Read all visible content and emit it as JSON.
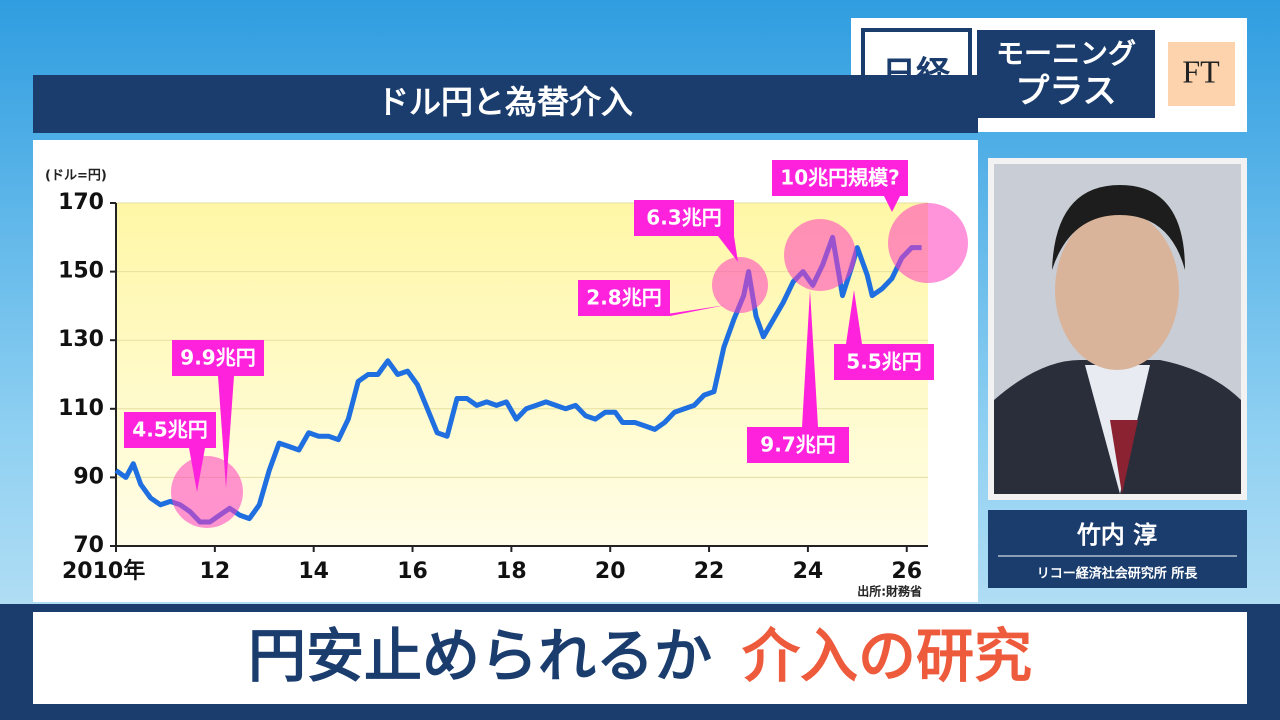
{
  "logo": {
    "nikkei": "日経",
    "line1": "モーニング",
    "line2": "プラス",
    "ft": "FT"
  },
  "presenter": {
    "name": "竹内 淳",
    "affiliation": "リコー経済社会研究所 所長"
  },
  "caption": {
    "main": "円安止められるか",
    "highlight": "介入の研究"
  },
  "chart_data": {
    "type": "line",
    "title": "ドル円と為替介入",
    "y_unit": "(ドル=円)",
    "source": "出所:財務省",
    "color": "#1f6fe0",
    "x": [
      2010.0,
      2010.2,
      2010.35,
      2010.5,
      2010.7,
      2010.9,
      2011.1,
      2011.3,
      2011.5,
      2011.7,
      2011.9,
      2012.1,
      2012.3,
      2012.5,
      2012.7,
      2012.9,
      2013.1,
      2013.3,
      2013.5,
      2013.7,
      2013.9,
      2014.1,
      2014.3,
      2014.5,
      2014.7,
      2014.9,
      2015.1,
      2015.3,
      2015.5,
      2015.7,
      2015.9,
      2016.1,
      2016.3,
      2016.5,
      2016.7,
      2016.9,
      2017.1,
      2017.3,
      2017.5,
      2017.7,
      2017.9,
      2018.1,
      2018.3,
      2018.5,
      2018.7,
      2018.9,
      2019.1,
      2019.3,
      2019.5,
      2019.7,
      2019.9,
      2020.1,
      2020.25,
      2020.5,
      2020.7,
      2020.9,
      2021.1,
      2021.3,
      2021.5,
      2021.7,
      2021.9,
      2022.1,
      2022.3,
      2022.5,
      2022.7,
      2022.8,
      2022.95,
      2023.1,
      2023.3,
      2023.5,
      2023.7,
      2023.9,
      2024.1,
      2024.3,
      2024.5,
      2024.7,
      2024.9,
      2025.0,
      2025.2,
      2025.3,
      2025.5,
      2025.7,
      2025.9,
      2026.1,
      2026.3
    ],
    "values": [
      92,
      90,
      94,
      88,
      84,
      82,
      83,
      82,
      80,
      77,
      77,
      79,
      81,
      79,
      78,
      82,
      92,
      100,
      99,
      98,
      103,
      102,
      102,
      101,
      107,
      118,
      120,
      120,
      124,
      120,
      121,
      117,
      110,
      103,
      102,
      113,
      113,
      111,
      112,
      111,
      112,
      107,
      110,
      111,
      112,
      111,
      110,
      111,
      108,
      107,
      109,
      109,
      106,
      106,
      105,
      104,
      106,
      109,
      110,
      111,
      114,
      115,
      128,
      136,
      143,
      150,
      137,
      131,
      136,
      141,
      147,
      150,
      146,
      152,
      160,
      143,
      152,
      157,
      149,
      143,
      145,
      148,
      154,
      157,
      157
    ],
    "xlim": [
      2010,
      2026.43
    ],
    "ylim": [
      70,
      170
    ],
    "xticks": [
      {
        "value": 2010,
        "label": "2010年"
      },
      2012,
      2014,
      2016,
      2018,
      2020,
      2022,
      2024,
      2026
    ],
    "xtick_labels": [
      "12",
      "14",
      "16",
      "18",
      "20",
      "22",
      "24",
      "26"
    ],
    "yticks": [
      70,
      90,
      110,
      130,
      150,
      170
    ],
    "grid": true,
    "annotations": [
      "4.5兆円",
      "9.9兆円",
      "2.8兆円",
      "6.3兆円",
      "10兆円規模?",
      "9.7兆円",
      "5.5兆円"
    ]
  }
}
